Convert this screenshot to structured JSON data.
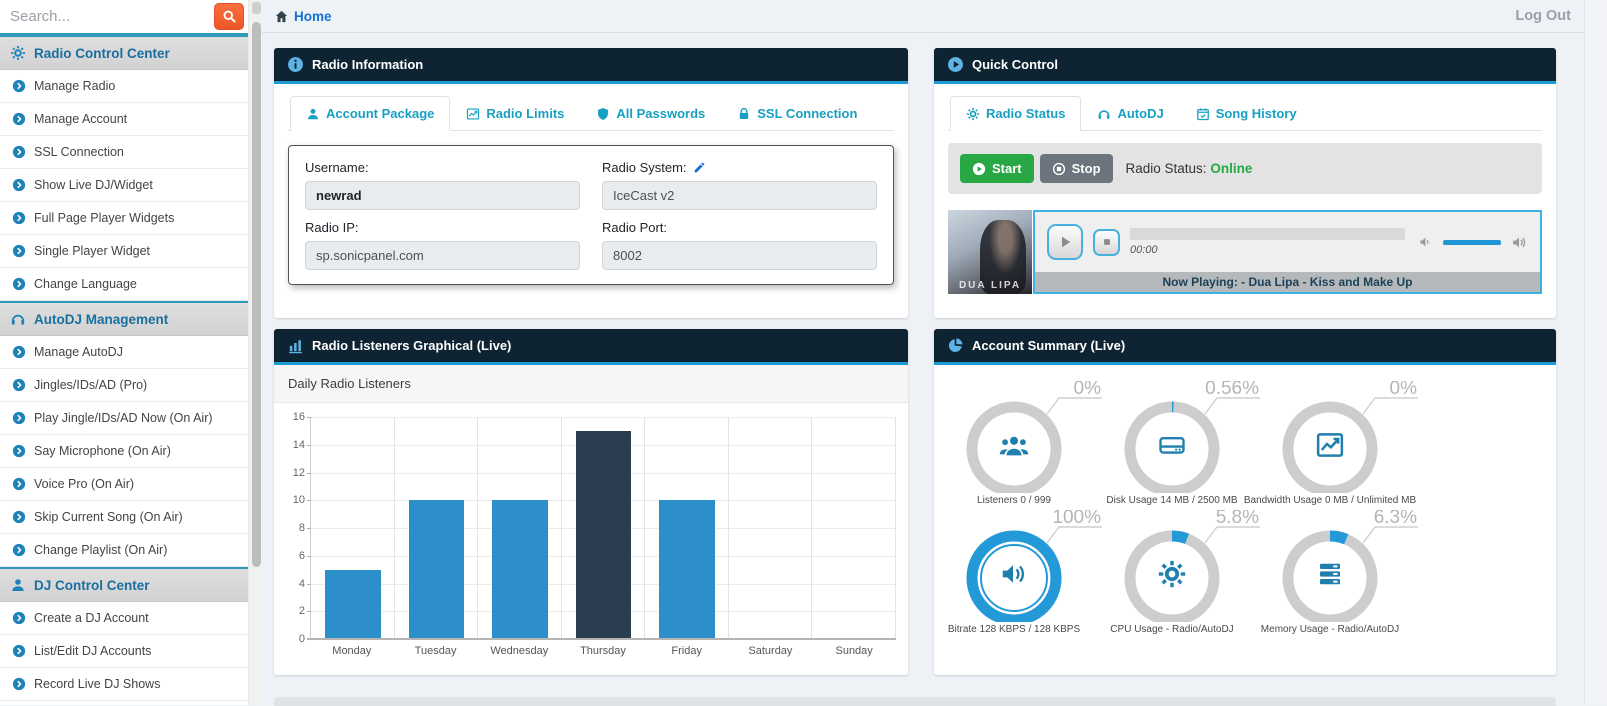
{
  "topbar": {
    "home_label": "Home",
    "logout_label": "Log Out"
  },
  "sidebar": {
    "search_placeholder": "Search...",
    "search_button_icon": "search-icon",
    "sections": [
      {
        "label": "Radio Control Center",
        "icon": "gear-icon",
        "items": [
          "Manage Radio",
          "Manage Account",
          "SSL Connection",
          "Show Live DJ/Widget",
          "Full Page Player Widgets",
          "Single Player Widget",
          "Change Language"
        ]
      },
      {
        "label": "AutoDJ Management",
        "icon": "headphones-icon",
        "items": [
          "Manage AutoDJ",
          "Jingles/IDs/AD (Pro)",
          "Play Jingle/IDs/AD Now (On Air)",
          "Say Microphone (On Air)",
          "Voice Pro (On Air)",
          "Skip Current Song (On Air)",
          "Change Playlist (On Air)"
        ]
      },
      {
        "label": "DJ Control Center",
        "icon": "user-icon",
        "items": [
          "Create a DJ Account",
          "List/Edit DJ Accounts",
          "Record Live DJ Shows"
        ]
      }
    ],
    "item_icon": "arrow-circle-right-icon"
  },
  "radio_information": {
    "title": "Radio Information",
    "icon": "info-circle-icon",
    "tabs": [
      {
        "label": "Account Package",
        "icon": "user-icon",
        "active": true
      },
      {
        "label": "Radio Limits",
        "icon": "line-chart-icon",
        "active": false
      },
      {
        "label": "All Passwords",
        "icon": "shield-icon",
        "active": false
      },
      {
        "label": "SSL Connection",
        "icon": "lock-icon",
        "active": false
      }
    ],
    "fields": [
      {
        "name": "username",
        "label": "Username:",
        "value": "newrad",
        "bold": true,
        "icon": null
      },
      {
        "name": "radio-system",
        "label": "Radio System:",
        "value": "IceCast v2",
        "bold": false,
        "icon": "pencil-icon"
      },
      {
        "name": "radio-ip",
        "label": "Radio IP:",
        "value": "sp.sonicpanel.com",
        "bold": false,
        "icon": null
      },
      {
        "name": "radio-port",
        "label": "Radio Port:",
        "value": "8002",
        "bold": false,
        "icon": null
      }
    ]
  },
  "quick_control": {
    "title": "Quick Control",
    "icon": "play-circle-icon",
    "tabs": [
      {
        "label": "Radio Status",
        "icon": "gear-icon",
        "active": true
      },
      {
        "label": "AutoDJ",
        "icon": "headphones-icon",
        "active": false
      },
      {
        "label": "Song History",
        "icon": "calendar-check-icon",
        "active": false
      }
    ],
    "start_label": "Start",
    "stop_label": "Stop",
    "status_label": "Radio Status:",
    "status_value": "Online",
    "status_color": "#28a745",
    "player": {
      "time": "00:00",
      "now_playing": "Now Playing: - Dua Lipa - Kiss and Make Up",
      "album_art_text": "DUA LIPA"
    }
  },
  "listeners_panel": {
    "title": "Radio Listeners Graphical (Live)",
    "icon": "bar-chart-icon",
    "subtitle": "Daily Radio Listeners"
  },
  "chart_data": {
    "type": "bar",
    "title": "Daily Radio Listeners",
    "categories": [
      "Monday",
      "Tuesday",
      "Wednesday",
      "Thursday",
      "Friday",
      "Saturday",
      "Sunday"
    ],
    "values": [
      5,
      10,
      10,
      15,
      10,
      0,
      0
    ],
    "bar_colors": [
      "#2d8fc9",
      "#2d8fc9",
      "#2d8fc9",
      "#2b3e50",
      "#2d8fc9",
      "#2d8fc9",
      "#2d8fc9"
    ],
    "xlabel": "",
    "ylabel": "",
    "ylim": [
      0,
      16
    ],
    "ytick_step": 2,
    "grid": true,
    "legend": false
  },
  "account_summary": {
    "title": "Account Summary (Live)",
    "icon": "pie-chart-icon",
    "colors": {
      "ring": "#cdcdcd",
      "arc": "#2499d8",
      "icon": "#1f7fad",
      "percent_text": "#b5b5b5",
      "callout": "#cfcfcf"
    },
    "gauges": [
      {
        "percent": "0%",
        "value": 0,
        "label": "Listeners 0 / 999",
        "icon": "listeners-icon"
      },
      {
        "percent": "0.56%",
        "value": 0.56,
        "label": "Disk Usage 14 MB / 2500 MB",
        "icon": "hdd-icon"
      },
      {
        "percent": "0%",
        "value": 0,
        "label": "Bandwidth Usage 0 MB / Unlimited MB",
        "icon": "line-chart-icon"
      },
      {
        "percent": "100%",
        "value": 100,
        "label": "Bitrate 128 KBPS / 128 KBPS",
        "icon": "volume-icon"
      },
      {
        "percent": "5.8%",
        "value": 5.8,
        "label": "CPU Usage - Radio/AutoDJ",
        "icon": "gear-icon"
      },
      {
        "percent": "6.3%",
        "value": 6.3,
        "label": "Memory Usage - Radio/AutoDJ",
        "icon": "memory-icon"
      }
    ]
  }
}
